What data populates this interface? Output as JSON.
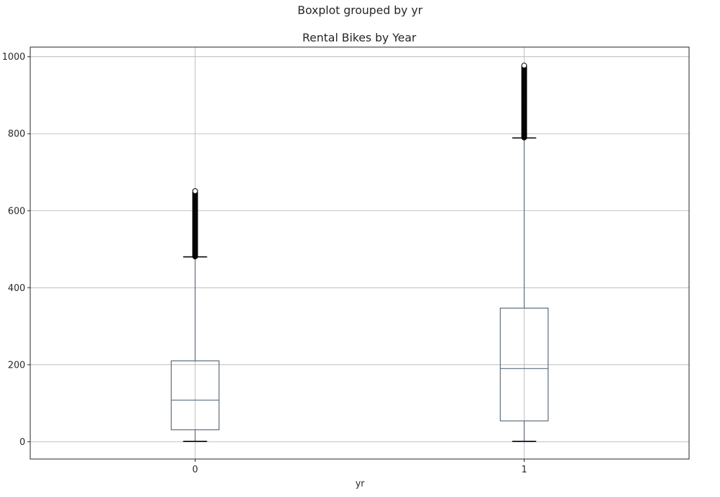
{
  "chart_data": {
    "type": "boxplot",
    "suptitle": "Boxplot grouped by yr",
    "title": "Rental Bikes by Year",
    "xlabel": "yr",
    "ylabel": "",
    "ylim": [
      -45,
      1025
    ],
    "yticks": [
      0,
      200,
      400,
      600,
      800,
      1000
    ],
    "grid": true,
    "categories": [
      "0",
      "1"
    ],
    "boxes": [
      {
        "category": "0",
        "whislo": 1,
        "q1": 31,
        "median": 108,
        "q3": 210,
        "whishi": 480,
        "fliers_range": [
          481,
          651
        ],
        "flier_sample": [
          481,
          490,
          500,
          510,
          520,
          530,
          540,
          550,
          560,
          570,
          580,
          590,
          600,
          610,
          620,
          628,
          635,
          642,
          651
        ]
      },
      {
        "category": "1",
        "whislo": 1,
        "q1": 54,
        "median": 190,
        "q3": 347,
        "whishi": 789,
        "fliers_range": [
          790,
          977
        ],
        "flier_sample": [
          790,
          800,
          810,
          820,
          830,
          840,
          850,
          860,
          870,
          880,
          890,
          900,
          910,
          920,
          930,
          940,
          950,
          960,
          968,
          977
        ]
      }
    ]
  }
}
